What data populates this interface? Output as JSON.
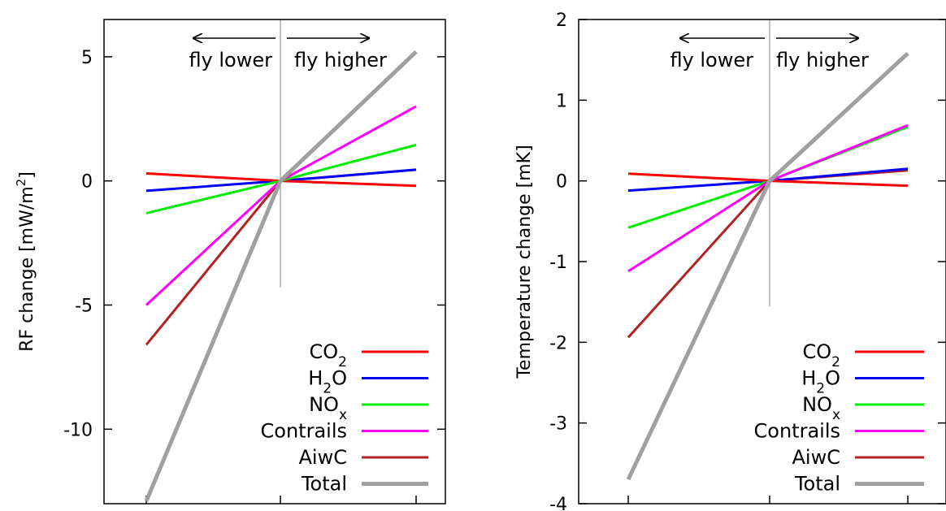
{
  "chart_data": [
    {
      "type": "line",
      "ylabel": "RF change [mW/m",
      "ylabel_sup": "2",
      "ylabel_end": "]",
      "ylim": [
        -13,
        6.5
      ],
      "yticks": [
        5,
        0,
        -5,
        -10
      ],
      "ytick_labels": [
        "5",
        "0",
        "-5",
        "-10"
      ],
      "x": [
        -1,
        0,
        1
      ],
      "annotation_left": "fly lower",
      "annotation_right": "fly higher",
      "legend_position": "bottom-right",
      "colors": {
        "CO2": "#ff0000",
        "H2O": "#0000ff",
        "NOx": "#00ee00",
        "Contrails": "#ff00ff",
        "AiwC": "#b22222",
        "Total": "#a0a0a0"
      },
      "series": [
        {
          "name": "CO2",
          "label_main": "CO",
          "label_sub": "2",
          "values": [
            0.3,
            0,
            -0.2
          ]
        },
        {
          "name": "H2O",
          "label_main": "H",
          "label_sub": "2",
          "label_end": "O",
          "values": [
            -0.4,
            0,
            0.45
          ]
        },
        {
          "name": "NOx",
          "label_main": "NO",
          "label_sub": "x",
          "values": [
            -1.3,
            0,
            1.45
          ]
        },
        {
          "name": "Contrails",
          "label_main": "Contrails",
          "values": [
            -5.0,
            0,
            3.0
          ]
        },
        {
          "name": "AiwC",
          "label_main": "AiwC",
          "values": [
            -6.6,
            0,
            0.45
          ]
        },
        {
          "name": "Total",
          "label_main": "Total",
          "values": [
            -12.9,
            0,
            5.2
          ]
        }
      ]
    },
    {
      "type": "line",
      "ylabel": "Temperature change [mK]",
      "ylim": [
        -4,
        2
      ],
      "yticks": [
        2,
        1,
        0,
        -1,
        -2,
        -3,
        -4
      ],
      "ytick_labels": [
        "2",
        "1",
        "0",
        "-1",
        "-2",
        "-3",
        "-4"
      ],
      "x": [
        -1,
        0,
        1
      ],
      "annotation_left": "fly lower",
      "annotation_right": "fly higher",
      "legend_position": "bottom-right",
      "colors": {
        "CO2": "#ff0000",
        "H2O": "#0000ff",
        "NOx": "#00ee00",
        "Contrails": "#ff00ff",
        "AiwC": "#b22222",
        "Total": "#a0a0a0"
      },
      "series": [
        {
          "name": "CO2",
          "label_main": "CO",
          "label_sub": "2",
          "values": [
            0.09,
            0,
            -0.06
          ]
        },
        {
          "name": "H2O",
          "label_main": "H",
          "label_sub": "2",
          "label_end": "O",
          "values": [
            -0.12,
            0,
            0.15
          ]
        },
        {
          "name": "NOx",
          "label_main": "NO",
          "label_sub": "x",
          "values": [
            -0.58,
            0,
            0.67
          ]
        },
        {
          "name": "Contrails",
          "label_main": "Contrails",
          "values": [
            -1.12,
            0,
            0.69
          ]
        },
        {
          "name": "AiwC",
          "label_main": "AiwC",
          "values": [
            -1.94,
            0,
            0.13
          ]
        },
        {
          "name": "Total",
          "label_main": "Total",
          "values": [
            -3.7,
            0,
            1.58
          ]
        }
      ]
    }
  ]
}
